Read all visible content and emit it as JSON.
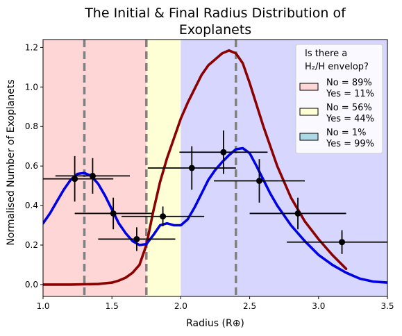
{
  "chart_data": {
    "type": "line",
    "title_line1": "The Initial & Final Radius Distribution of",
    "title_line2": "Exoplanets",
    "xlabel": "Radius (R⊕)",
    "ylabel": "Normalised Number of Exoplanets",
    "xlim": [
      1.0,
      3.5
    ],
    "ylim": [
      -0.06,
      1.24
    ],
    "x_ticks": [
      1.0,
      1.5,
      2.0,
      2.5,
      3.0,
      3.5
    ],
    "x_tick_labels": [
      "1.0",
      "1.5",
      "2.0",
      "2.5",
      "3.0",
      "3.5"
    ],
    "y_ticks": [
      0.0,
      0.2,
      0.4,
      0.6,
      0.8,
      1.0,
      1.2
    ],
    "y_tick_labels": [
      "0.0",
      "0.2",
      "0.4",
      "0.6",
      "0.8",
      "1.0",
      "1.2"
    ],
    "shaded_regions": [
      {
        "x0": 1.0,
        "x1": 1.75,
        "color": "#ffd6d6"
      },
      {
        "x0": 1.75,
        "x1": 2.0,
        "color": "#ffffd6"
      },
      {
        "x0": 2.0,
        "x1": 3.5,
        "color": "#d6d6ff"
      }
    ],
    "vertical_lines": [
      1.3,
      1.75,
      2.4
    ],
    "series": [
      {
        "color": "#8b0000",
        "x": [
          1.0,
          1.2,
          1.4,
          1.5,
          1.55,
          1.6,
          1.65,
          1.7,
          1.75,
          1.8,
          1.85,
          1.9,
          1.95,
          2.0,
          2.05,
          2.1,
          2.15,
          2.2,
          2.25,
          2.3,
          2.35,
          2.4,
          2.45,
          2.5,
          2.6,
          2.7,
          2.8,
          2.9,
          3.0,
          3.1,
          3.2
        ],
        "values": [
          0.0,
          0.0,
          0.003,
          0.01,
          0.02,
          0.035,
          0.06,
          0.1,
          0.2,
          0.37,
          0.52,
          0.64,
          0.74,
          0.84,
          0.92,
          0.99,
          1.06,
          1.11,
          1.14,
          1.17,
          1.185,
          1.17,
          1.12,
          1.02,
          0.8,
          0.6,
          0.44,
          0.32,
          0.23,
          0.15,
          0.08
        ]
      },
      {
        "color": "#0000e6",
        "x": [
          1.0,
          1.05,
          1.1,
          1.15,
          1.2,
          1.25,
          1.3,
          1.35,
          1.4,
          1.45,
          1.5,
          1.55,
          1.6,
          1.65,
          1.7,
          1.75,
          1.8,
          1.85,
          1.9,
          1.95,
          2.0,
          2.05,
          2.1,
          2.15,
          2.2,
          2.25,
          2.3,
          2.35,
          2.4,
          2.45,
          2.5,
          2.55,
          2.6,
          2.65,
          2.7,
          2.8,
          2.9,
          3.0,
          3.1,
          3.2,
          3.3,
          3.4,
          3.5
        ],
        "values": [
          0.31,
          0.36,
          0.42,
          0.48,
          0.53,
          0.56,
          0.565,
          0.55,
          0.51,
          0.45,
          0.38,
          0.31,
          0.26,
          0.22,
          0.2,
          0.205,
          0.25,
          0.3,
          0.31,
          0.3,
          0.3,
          0.33,
          0.39,
          0.46,
          0.53,
          0.58,
          0.62,
          0.655,
          0.685,
          0.69,
          0.665,
          0.6,
          0.53,
          0.46,
          0.4,
          0.3,
          0.22,
          0.15,
          0.1,
          0.06,
          0.03,
          0.015,
          0.01
        ]
      }
    ],
    "errorbar_points": [
      {
        "x": 1.23,
        "y": 0.535,
        "xerr": 0.28,
        "yerr": 0.115
      },
      {
        "x": 1.36,
        "y": 0.55,
        "xerr": 0.27,
        "yerr": 0.09
      },
      {
        "x": 1.51,
        "y": 0.36,
        "xerr": 0.28,
        "yerr": 0.08
      },
      {
        "x": 1.68,
        "y": 0.23,
        "xerr": 0.28,
        "yerr": 0.06
      },
      {
        "x": 1.87,
        "y": 0.345,
        "xerr": 0.3,
        "yerr": 0.05
      },
      {
        "x": 2.08,
        "y": 0.59,
        "xerr": 0.32,
        "yerr": 0.11
      },
      {
        "x": 2.31,
        "y": 0.67,
        "xerr": 0.32,
        "yerr": 0.11
      },
      {
        "x": 2.57,
        "y": 0.525,
        "xerr": 0.33,
        "yerr": 0.11
      },
      {
        "x": 2.85,
        "y": 0.36,
        "xerr": 0.35,
        "yerr": 0.08
      },
      {
        "x": 3.17,
        "y": 0.215,
        "xerr": 0.4,
        "yerr": 0.06
      }
    ],
    "legend": {
      "placement": "top-right",
      "title_line1": "Is there a",
      "title_line2": "H₂/H envelop?",
      "entries": [
        {
          "color": "#ffd6d6",
          "line1": "No = 89%",
          "line2": "Yes = 11%"
        },
        {
          "color": "#ffffd6",
          "line1": "No = 56%",
          "line2": "Yes = 44%"
        },
        {
          "color": "#add8e6",
          "line1": "No = 1%",
          "line2": "Yes = 99%"
        }
      ]
    }
  }
}
